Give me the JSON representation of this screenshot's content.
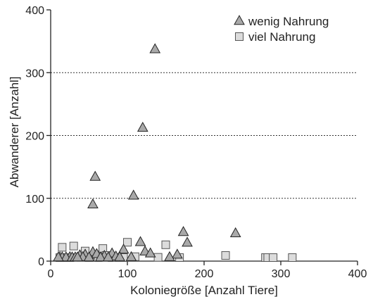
{
  "chart_data": {
    "type": "scatter",
    "title": "",
    "xlabel": "Koloniegröße [Anzahl Tiere]",
    "ylabel": "Abwanderer [Anzahl]",
    "xlim": [
      0,
      400
    ],
    "ylim": [
      0,
      400
    ],
    "xticks": [
      0,
      100,
      200,
      300,
      400
    ],
    "yticks": [
      0,
      100,
      200,
      300,
      400
    ],
    "grid": "horizontal dashed at 100, 200, 300",
    "legend_position": "top-right",
    "series": [
      {
        "name": "wenig Nahrung",
        "marker": "triangle",
        "color": "#a9a9a9",
        "points": [
          [
            136,
            337
          ],
          [
            120,
            212
          ],
          [
            58,
            134
          ],
          [
            108,
            104
          ],
          [
            55,
            90
          ],
          [
            173,
            46
          ],
          [
            241,
            44
          ],
          [
            178,
            29
          ],
          [
            117,
            30
          ],
          [
            95,
            18
          ],
          [
            123,
            15
          ],
          [
            130,
            12
          ],
          [
            55,
            14
          ],
          [
            80,
            12
          ],
          [
            60,
            11
          ],
          [
            45,
            10
          ],
          [
            38,
            9
          ],
          [
            165,
            10
          ],
          [
            70,
            8
          ],
          [
            85,
            7
          ],
          [
            25,
            6
          ],
          [
            12,
            5
          ],
          [
            15,
            4
          ],
          [
            20,
            3
          ],
          [
            28,
            5
          ],
          [
            32,
            4
          ],
          [
            42,
            6
          ],
          [
            50,
            4
          ],
          [
            65,
            4
          ],
          [
            75,
            5
          ],
          [
            90,
            6
          ],
          [
            105,
            6
          ],
          [
            155,
            6
          ],
          [
            10,
            2
          ],
          [
            35,
            2
          ]
        ]
      },
      {
        "name": "viel Nahrung",
        "marker": "square",
        "color": "#dcdcdc",
        "points": [
          [
            15,
            22
          ],
          [
            30,
            24
          ],
          [
            45,
            16
          ],
          [
            68,
            20
          ],
          [
            100,
            30
          ],
          [
            150,
            26
          ],
          [
            58,
            10
          ],
          [
            72,
            9
          ],
          [
            110,
            7
          ],
          [
            140,
            6
          ],
          [
            168,
            5
          ],
          [
            228,
            9
          ],
          [
            280,
            5
          ],
          [
            283,
            5
          ],
          [
            290,
            5
          ],
          [
            315,
            5
          ],
          [
            40,
            6
          ],
          [
            88,
            5
          ],
          [
            12,
            5
          ],
          [
            20,
            4
          ],
          [
            25,
            4
          ],
          [
            50,
            5
          ],
          [
            62,
            3
          ],
          [
            80,
            3
          ],
          [
            95,
            4
          ]
        ]
      }
    ]
  }
}
